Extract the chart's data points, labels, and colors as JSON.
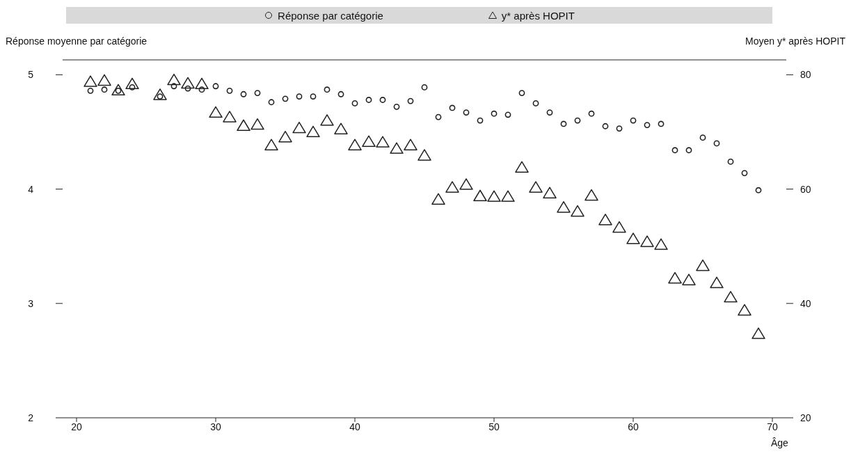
{
  "chart_data": {
    "type": "scatter",
    "xlabel": "Âge",
    "ylabel": "Réponse moyenne par catégorie",
    "y2label": "Moyen y* après HOPIT",
    "legend": "top",
    "xlim": [
      19,
      71
    ],
    "xticks": [
      20,
      30,
      40,
      50,
      60,
      70
    ],
    "ylim": [
      2,
      5.13
    ],
    "yticks": [
      2,
      3,
      4,
      5
    ],
    "y2lim": [
      20,
      82.6
    ],
    "y2ticks": [
      20,
      40,
      60,
      80
    ],
    "series": [
      {
        "name": "Réponse par catégorie",
        "color": "#222222",
        "marker": "circle",
        "x": [
          21,
          22,
          23,
          24,
          26,
          27,
          28,
          29,
          30,
          31,
          32,
          33,
          34,
          35,
          36,
          37,
          38,
          39,
          40,
          41,
          42,
          43,
          44,
          45,
          46,
          47,
          48,
          49,
          50,
          51,
          52,
          53,
          54,
          55,
          56,
          57,
          58,
          59,
          60,
          61,
          62,
          63,
          64,
          65,
          66,
          67,
          68,
          69
        ],
        "values": [
          4.86,
          4.87,
          4.86,
          4.89,
          4.81,
          4.9,
          4.88,
          4.87,
          4.9,
          4.86,
          4.83,
          4.84,
          4.76,
          4.79,
          4.81,
          4.81,
          4.87,
          4.83,
          4.75,
          4.78,
          4.78,
          4.72,
          4.77,
          4.89,
          4.63,
          4.71,
          4.67,
          4.6,
          4.66,
          4.65,
          4.84,
          4.75,
          4.67,
          4.57,
          4.6,
          4.66,
          4.55,
          4.53,
          4.6,
          4.56,
          4.57,
          4.34,
          4.34,
          4.45,
          4.4,
          4.24,
          4.14,
          3.99
        ]
      },
      {
        "name": "y* après HOPIT",
        "color": "#222222",
        "marker": "triangle",
        "axis": "y2",
        "x": [
          21,
          22,
          23,
          24,
          26,
          27,
          28,
          29,
          30,
          31,
          32,
          33,
          34,
          35,
          36,
          37,
          38,
          39,
          40,
          41,
          42,
          43,
          44,
          45,
          46,
          47,
          48,
          49,
          50,
          51,
          52,
          53,
          54,
          55,
          56,
          57,
          58,
          59,
          60,
          61,
          62,
          63,
          64,
          65,
          66,
          67,
          68,
          69
        ],
        "values": [
          78.7,
          78.9,
          77.2,
          78.3,
          76.4,
          79,
          78.4,
          78.3,
          73.3,
          72.5,
          71,
          71.2,
          67.6,
          69,
          70.6,
          69.9,
          71.9,
          70.4,
          67.6,
          68.2,
          68.1,
          67,
          67.6,
          65.8,
          58.1,
          60.2,
          60.7,
          58.7,
          58.6,
          58.6,
          63.7,
          60.2,
          59.2,
          56.7,
          56,
          58.8,
          54.5,
          53.2,
          51.2,
          50.7,
          50.2,
          44.3,
          44,
          46.5,
          43.5,
          41,
          38.7,
          34.6
        ]
      }
    ]
  }
}
